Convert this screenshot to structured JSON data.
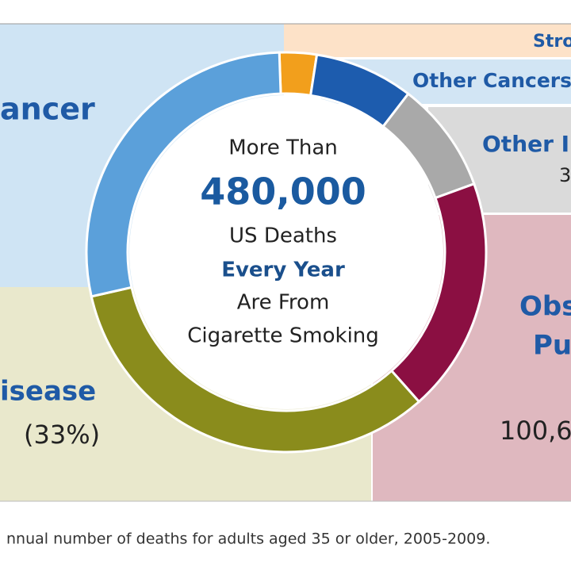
{
  "chart_data": {
    "type": "donut",
    "center_text": [
      "More Than",
      "480,000",
      "US Deaths",
      "Every Year",
      "Are From",
      "Cigarette Smoking"
    ],
    "categories": [
      [
        "Stro"
      ],
      [
        "Other Cancers"
      ],
      [
        "Other I"
      ],
      [
        "Obs",
        "Pu"
      ],
      [
        "isease"
      ],
      [
        "ancer"
      ]
    ],
    "values": [
      3,
      8,
      9,
      19,
      33,
      28
    ],
    "value_labels": [
      null,
      null,
      null,
      null,
      "(33%)",
      null
    ],
    "counts": [
      null,
      null,
      "3",
      "100,6",
      null,
      null
    ],
    "colors": [
      "#f29f1c",
      "#1d5cae",
      "#a9a9a9",
      "#8b0f42",
      "#8a8c1c",
      "#5ba0da"
    ],
    "footnote": "nnual number of deaths for adults aged 35 or older, 2005-2009."
  }
}
